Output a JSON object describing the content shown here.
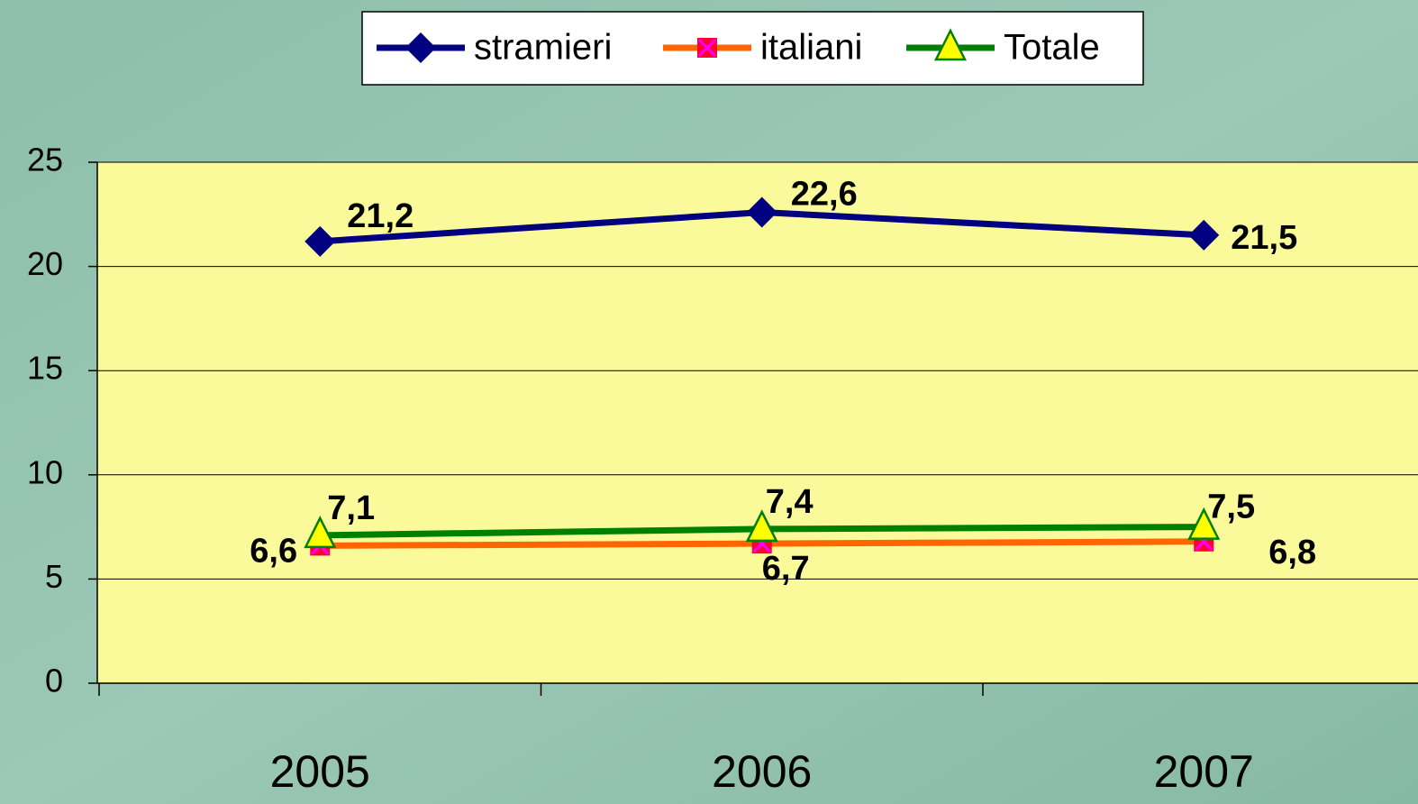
{
  "chart_data": {
    "type": "line",
    "categories": [
      "2005",
      "2006",
      "2007"
    ],
    "series": [
      {
        "name": "stramieri",
        "color": "#000080",
        "values": [
          21.2,
          22.6,
          21.5
        ],
        "value_labels": [
          "21,2",
          "22,6",
          "21,5"
        ]
      },
      {
        "name": "italiani",
        "color": "#ff6600",
        "values": [
          6.6,
          6.7,
          6.8
        ],
        "value_labels": [
          "6,6",
          "6,7",
          "6,8"
        ]
      },
      {
        "name": "Totale",
        "color": "#008000",
        "values": [
          7.1,
          7.4,
          7.5
        ],
        "value_labels": [
          "7,1",
          "7,4",
          "7,5"
        ]
      }
    ],
    "ylim": [
      0,
      25
    ],
    "yticks": [
      0,
      5,
      10,
      15,
      20,
      25
    ],
    "grid": true,
    "legend": "top"
  }
}
